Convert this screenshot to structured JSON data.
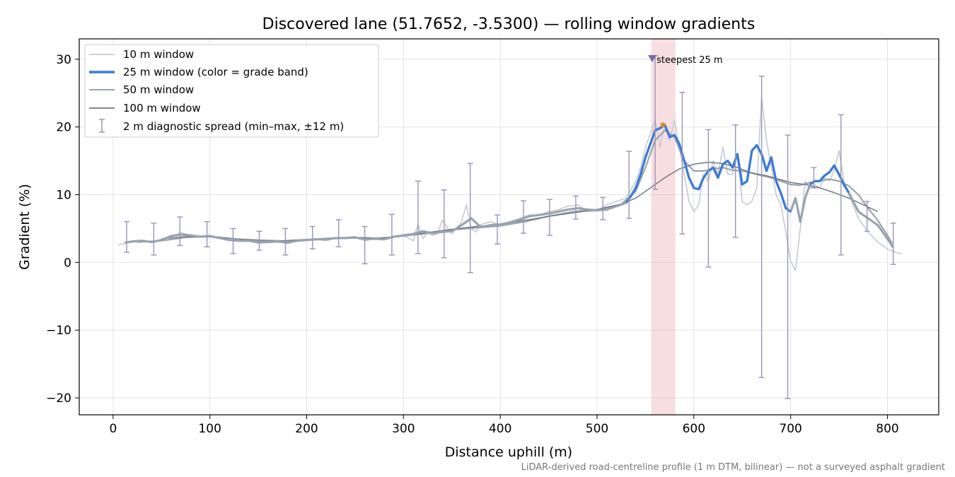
{
  "chart_data": {
    "type": "line",
    "title": "Discovered lane (51.7652, -3.5300) — rolling window gradients",
    "xlabel": "Distance uphill (m)",
    "ylabel": "Gradient (%)",
    "xlim": [
      -35,
      853
    ],
    "ylim": [
      -22.5,
      33
    ],
    "xticks": [
      0,
      100,
      200,
      300,
      400,
      500,
      600,
      700,
      800
    ],
    "yticks": [
      -20,
      -10,
      0,
      10,
      20,
      30
    ],
    "grid": true,
    "legend_placement": "top-left",
    "footnote": "LiDAR-derived road-centreline profile (1 m DTM, bilinear) — not a surveyed asphalt gradient",
    "annotations": [
      {
        "text": "steepest 25 m",
        "x": 560,
        "y": 30,
        "color": "#c0392b",
        "span": [
          556,
          581
        ],
        "marker_x": 557,
        "marker_y": 30.2,
        "peak_x": 568,
        "peak_y": 20.3
      }
    ],
    "series": [
      {
        "name": "10 m window",
        "color": "#c5cad3",
        "x": [
          5,
          12,
          20,
          30,
          40,
          50,
          60,
          70,
          80,
          90,
          100,
          110,
          120,
          130,
          140,
          150,
          160,
          170,
          180,
          190,
          200,
          210,
          220,
          230,
          240,
          250,
          260,
          270,
          280,
          290,
          300,
          305,
          310,
          315,
          320,
          325,
          330,
          335,
          340,
          350,
          360,
          365,
          370,
          375,
          380,
          390,
          400,
          410,
          420,
          430,
          440,
          450,
          460,
          470,
          480,
          490,
          500,
          510,
          520,
          530,
          540,
          545,
          550,
          555,
          560,
          565,
          570,
          575,
          580,
          585,
          590,
          595,
          600,
          605,
          610,
          615,
          620,
          625,
          630,
          635,
          640,
          645,
          650,
          655,
          660,
          665,
          670,
          675,
          680,
          685,
          690,
          695,
          700,
          705,
          710,
          715,
          720,
          725,
          730,
          735,
          740,
          745,
          750,
          755,
          760,
          770,
          780,
          790,
          800,
          810,
          815
        ],
        "y": [
          2.6,
          2.8,
          3.0,
          3.1,
          3.0,
          3.3,
          3.8,
          4.4,
          4.0,
          3.8,
          4.0,
          3.6,
          3.3,
          3.1,
          3.2,
          2.8,
          3.0,
          3.2,
          3.0,
          3.3,
          3.3,
          3.4,
          3.2,
          3.6,
          3.7,
          3.8,
          3.2,
          3.5,
          3.4,
          3.7,
          4.0,
          3.6,
          3.2,
          5.6,
          3.5,
          4.4,
          4.0,
          4.2,
          6.2,
          4.2,
          6.0,
          8.5,
          5.0,
          4.5,
          5.6,
          6.0,
          5.5,
          6.0,
          6.5,
          7.0,
          7.0,
          7.5,
          7.8,
          8.3,
          8.5,
          7.5,
          7.6,
          8.5,
          9.0,
          9.5,
          12.0,
          14.0,
          17.0,
          19.0,
          21.0,
          17.0,
          20.5,
          18.0,
          21.0,
          17.0,
          13.0,
          9.0,
          7.5,
          8.5,
          13.0,
          12.0,
          15.0,
          13.0,
          17.0,
          13.0,
          13.0,
          16.0,
          9.0,
          8.5,
          9.0,
          11.0,
          24.5,
          18.0,
          14.0,
          10.0,
          8.5,
          4.5,
          0.2,
          -1.2,
          5.0,
          12.0,
          11.0,
          11.5,
          11.0,
          12.5,
          12.0,
          13.5,
          16.5,
          12.0,
          10.0,
          6.5,
          4.5,
          3.0,
          2.0,
          1.4,
          1.3
        ]
      },
      {
        "name": "25 m window (color = grade band)",
        "color": "#3a7bd5",
        "x": [
          12,
          20,
          30,
          40,
          50,
          60,
          70,
          80,
          90,
          100,
          110,
          120,
          130,
          140,
          150,
          160,
          170,
          180,
          190,
          200,
          210,
          220,
          230,
          240,
          250,
          260,
          270,
          280,
          290,
          300,
          310,
          320,
          330,
          340,
          350,
          360,
          370,
          380,
          390,
          400,
          410,
          420,
          430,
          440,
          450,
          460,
          470,
          480,
          490,
          500,
          510,
          520,
          530,
          535,
          540,
          545,
          550,
          555,
          560,
          565,
          570,
          575,
          580,
          585,
          590,
          595,
          600,
          605,
          610,
          615,
          620,
          625,
          630,
          635,
          640,
          645,
          650,
          655,
          660,
          665,
          670,
          675,
          680,
          685,
          690,
          695,
          700,
          705,
          710,
          715,
          720,
          725,
          730,
          735,
          740,
          745,
          750,
          755,
          760,
          770,
          780,
          790,
          800,
          806
        ],
        "y": [
          2.9,
          3.1,
          3.2,
          3.0,
          3.3,
          3.9,
          4.1,
          4.0,
          3.8,
          3.9,
          3.6,
          3.3,
          3.2,
          3.2,
          3.0,
          3.0,
          3.1,
          2.9,
          3.2,
          3.3,
          3.4,
          3.4,
          3.6,
          3.6,
          3.7,
          3.4,
          3.5,
          3.4,
          3.8,
          4.0,
          4.2,
          4.6,
          4.3,
          4.5,
          4.6,
          5.5,
          6.5,
          5.2,
          5.5,
          5.6,
          5.9,
          6.3,
          6.8,
          7.0,
          7.2,
          7.5,
          7.8,
          8.0,
          7.8,
          7.7,
          7.8,
          8.3,
          8.8,
          9.8,
          11.0,
          13.0,
          15.5,
          17.5,
          19.5,
          19.8,
          20.3,
          18.5,
          18.8,
          17.5,
          15.0,
          12.5,
          11.0,
          10.8,
          12.5,
          13.5,
          14.0,
          12.5,
          14.5,
          15.0,
          14.0,
          16.0,
          11.5,
          12.0,
          16.5,
          17.3,
          16.0,
          13.5,
          15.5,
          12.0,
          10.2,
          8.0,
          7.5,
          9.5,
          6.0,
          9.5,
          11.5,
          12.0,
          12.0,
          12.8,
          13.3,
          14.3,
          13.0,
          11.5,
          10.3,
          7.5,
          6.5,
          5.5,
          3.5,
          2.2
        ],
        "grade_bands": [
          {
            "from": 530,
            "to": 700,
            "color": "#3a7bd5"
          },
          {
            "from": 720,
            "to": 760,
            "color": "#3a7bd5"
          }
        ]
      },
      {
        "name": "50 m window",
        "color": "#9aa3b0",
        "x": [
          25,
          50,
          75,
          100,
          125,
          150,
          175,
          200,
          225,
          250,
          275,
          300,
          325,
          350,
          375,
          400,
          425,
          450,
          475,
          500,
          525,
          540,
          550,
          560,
          570,
          580,
          590,
          600,
          610,
          620,
          630,
          640,
          650,
          660,
          670,
          680,
          690,
          700,
          710,
          720,
          730,
          740,
          750,
          760,
          770,
          780,
          790,
          800,
          805
        ],
        "y": [
          3.0,
          3.2,
          3.7,
          3.8,
          3.2,
          3.1,
          3.0,
          3.3,
          3.5,
          3.6,
          3.5,
          3.9,
          4.3,
          4.8,
          5.1,
          5.4,
          6.0,
          6.8,
          7.5,
          7.8,
          8.6,
          10.5,
          14.0,
          18.0,
          19.5,
          18.5,
          15.0,
          13.5,
          13.5,
          13.8,
          14.0,
          13.6,
          13.5,
          13.2,
          12.8,
          12.5,
          12.0,
          11.5,
          11.4,
          11.8,
          12.0,
          12.3,
          12.0,
          11.3,
          10.0,
          8.0,
          6.2,
          4.0,
          2.8
        ]
      },
      {
        "name": "100 m window",
        "color": "#6c7480",
        "x": [
          50,
          75,
          100,
          125,
          150,
          175,
          200,
          225,
          250,
          275,
          300,
          325,
          350,
          375,
          400,
          425,
          450,
          475,
          500,
          525,
          540,
          555,
          570,
          585,
          600,
          615,
          630,
          645,
          660,
          675,
          690,
          700,
          715,
          730,
          745,
          760,
          775,
          790
        ],
        "y": [
          3.5,
          3.8,
          3.9,
          3.5,
          3.3,
          3.2,
          3.4,
          3.6,
          3.7,
          3.6,
          3.9,
          4.4,
          4.9,
          5.3,
          5.6,
          6.2,
          6.8,
          7.3,
          7.8,
          8.6,
          9.5,
          11.0,
          12.5,
          13.8,
          14.5,
          14.8,
          14.6,
          14.0,
          13.2,
          12.8,
          12.2,
          11.8,
          11.5,
          11.0,
          10.3,
          9.5,
          8.5,
          7.5
        ]
      }
    ],
    "error_bars": {
      "name": "2 m diagnostic spread (min–max, ±12 m)",
      "color": "#9a94b8",
      "x": [
        14,
        42,
        69,
        97,
        124,
        151,
        178,
        206,
        233,
        260,
        288,
        315,
        342,
        369,
        397,
        424,
        451,
        478,
        506,
        533,
        560,
        588,
        615,
        643,
        670,
        697,
        724,
        752,
        779,
        806
      ],
      "min": [
        1.5,
        1.1,
        2.5,
        2.3,
        1.3,
        1.8,
        1.1,
        2.0,
        2.3,
        -0.2,
        1.1,
        1.3,
        0.7,
        -1.5,
        2.7,
        4.3,
        4.0,
        6.4,
        6.3,
        6.5,
        10.8,
        4.2,
        -0.7,
        3.7,
        -17.0,
        -20.1,
        11.0,
        1.1,
        4.6,
        -0.3
      ],
      "max": [
        6.0,
        5.8,
        6.7,
        6.0,
        5.0,
        4.6,
        5.0,
        5.3,
        6.3,
        5.3,
        7.1,
        12.0,
        10.7,
        14.6,
        7.0,
        9.1,
        9.3,
        9.8,
        9.6,
        16.4,
        30.5,
        25.1,
        19.6,
        20.3,
        27.5,
        18.8,
        14.0,
        21.8,
        9.0,
        5.8
      ]
    }
  }
}
